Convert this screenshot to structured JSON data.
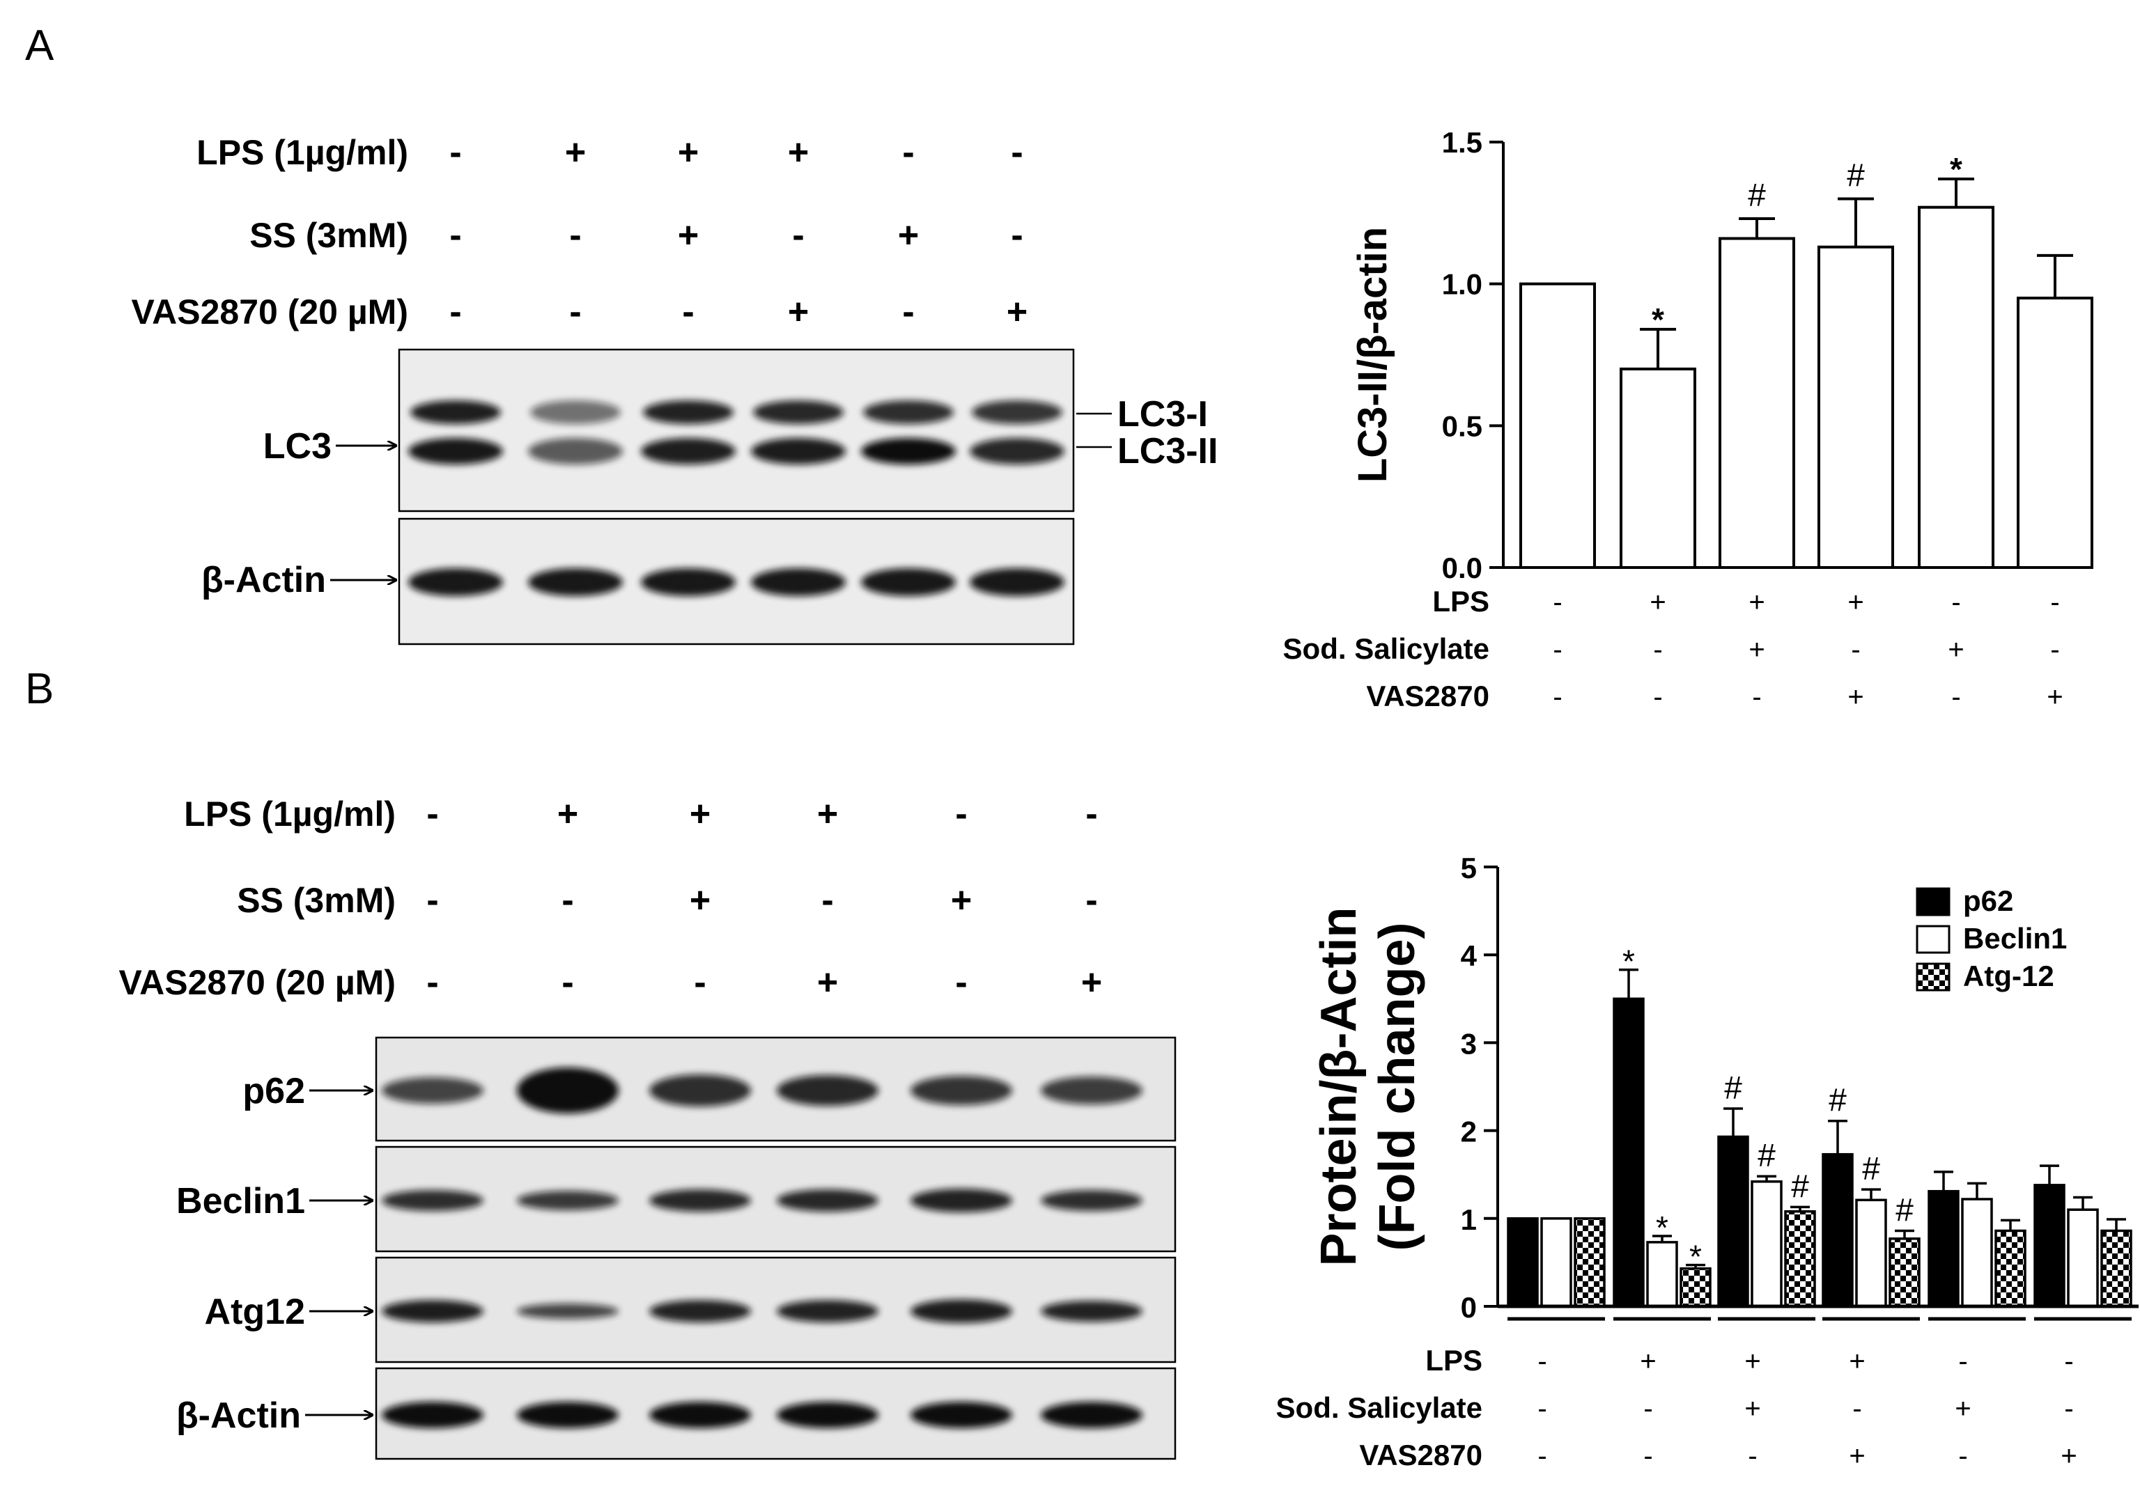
{
  "panel_a": {
    "letter": "A",
    "treatments": [
      {
        "label": "LPS (1µg/ml)",
        "signs": [
          "-",
          "+",
          "+",
          "+",
          "-",
          "-"
        ]
      },
      {
        "label": "SS (3mM)",
        "signs": [
          "-",
          "-",
          "+",
          "-",
          "+",
          "-"
        ]
      },
      {
        "label": "VAS2870 (20 µM)",
        "signs": [
          "-",
          "-",
          "-",
          "+",
          "-",
          "+"
        ]
      }
    ],
    "blot_labels": {
      "lc3": "LC3",
      "lc3_i": "LC3-I",
      "lc3_ii": "LC3-II",
      "actin": "β-Actin"
    },
    "chart_conditions": [
      {
        "label": "LPS",
        "signs": [
          "-",
          "+",
          "+",
          "+",
          "-",
          "-"
        ]
      },
      {
        "label": "Sod. Salicylate",
        "signs": [
          "-",
          "-",
          "+",
          "-",
          "+",
          "-"
        ]
      },
      {
        "label": "VAS2870",
        "signs": [
          "-",
          "-",
          "-",
          "+",
          "-",
          "+"
        ]
      }
    ]
  },
  "panel_b": {
    "letter": "B",
    "treatments": [
      {
        "label": "LPS (1µg/ml)",
        "signs": [
          "-",
          "+",
          "+",
          "+",
          "-",
          "-"
        ]
      },
      {
        "label": "SS (3mM)",
        "signs": [
          "-",
          "-",
          "+",
          "-",
          "+",
          "-"
        ]
      },
      {
        "label": "VAS2870 (20 µM)",
        "signs": [
          "-",
          "-",
          "-",
          "+",
          "-",
          "+"
        ]
      }
    ],
    "blot_labels": {
      "p62": "p62",
      "beclin1": "Beclin1",
      "atg12": "Atg12",
      "actin": "β-Actin"
    },
    "chart_conditions": [
      {
        "label": "LPS",
        "signs": [
          "-",
          "+",
          "+",
          "+",
          "-",
          "-"
        ]
      },
      {
        "label": "Sod. Salicylate",
        "signs": [
          "-",
          "-",
          "+",
          "-",
          "+",
          "-"
        ]
      },
      {
        "label": "VAS2870",
        "signs": [
          "-",
          "-",
          "-",
          "+",
          "-",
          "+"
        ]
      }
    ]
  },
  "chart_data": [
    {
      "type": "bar",
      "title": "",
      "ylabel": "LC3-II/β-actin",
      "xlabel": "",
      "ylim": [
        0,
        1.5
      ],
      "yticks": [
        "0.0",
        "0.5",
        "1.0",
        "1.5"
      ],
      "categories": [
        "1",
        "2",
        "3",
        "4",
        "5",
        "6"
      ],
      "values": [
        1.0,
        0.7,
        1.16,
        1.13,
        1.27,
        0.95
      ],
      "errors": [
        0,
        0.14,
        0.07,
        0.17,
        0.1,
        0.15
      ],
      "annotations": [
        "",
        "*",
        "#",
        "#",
        "*",
        ""
      ],
      "grid": false
    },
    {
      "type": "bar",
      "title": "",
      "ylabel": "Protein/β-Actin (Fold change)",
      "ylabel_lines": [
        "Protein/β-Actin",
        "(Fold change)"
      ],
      "xlabel": "",
      "ylim": [
        0,
        5
      ],
      "yticks": [
        "0",
        "1",
        "2",
        "3",
        "4",
        "5"
      ],
      "categories": [
        "1",
        "2",
        "3",
        "4",
        "5",
        "6"
      ],
      "legend_position": "top-right",
      "grid": false,
      "series": [
        {
          "name": "p62",
          "fill": "#000000",
          "values": [
            1.0,
            3.5,
            1.93,
            1.73,
            1.31,
            1.38
          ],
          "errors": [
            0,
            0.33,
            0.32,
            0.38,
            0.22,
            0.22
          ],
          "annotations": [
            "",
            "*",
            "#",
            "#",
            "",
            ""
          ]
        },
        {
          "name": "Beclin1",
          "fill": "#ffffff",
          "values": [
            1.0,
            0.73,
            1.42,
            1.21,
            1.22,
            1.1
          ],
          "errors": [
            0,
            0.07,
            0.06,
            0.12,
            0.18,
            0.14
          ],
          "annotations": [
            "",
            "*",
            "#",
            "#",
            "",
            ""
          ]
        },
        {
          "name": "Atg-12",
          "fill": "checker",
          "values": [
            1.0,
            0.43,
            1.08,
            0.77,
            0.86,
            0.86
          ],
          "errors": [
            0,
            0.04,
            0.05,
            0.09,
            0.12,
            0.13
          ],
          "annotations": [
            "",
            "*",
            "#",
            "#",
            "",
            ""
          ]
        }
      ]
    }
  ]
}
